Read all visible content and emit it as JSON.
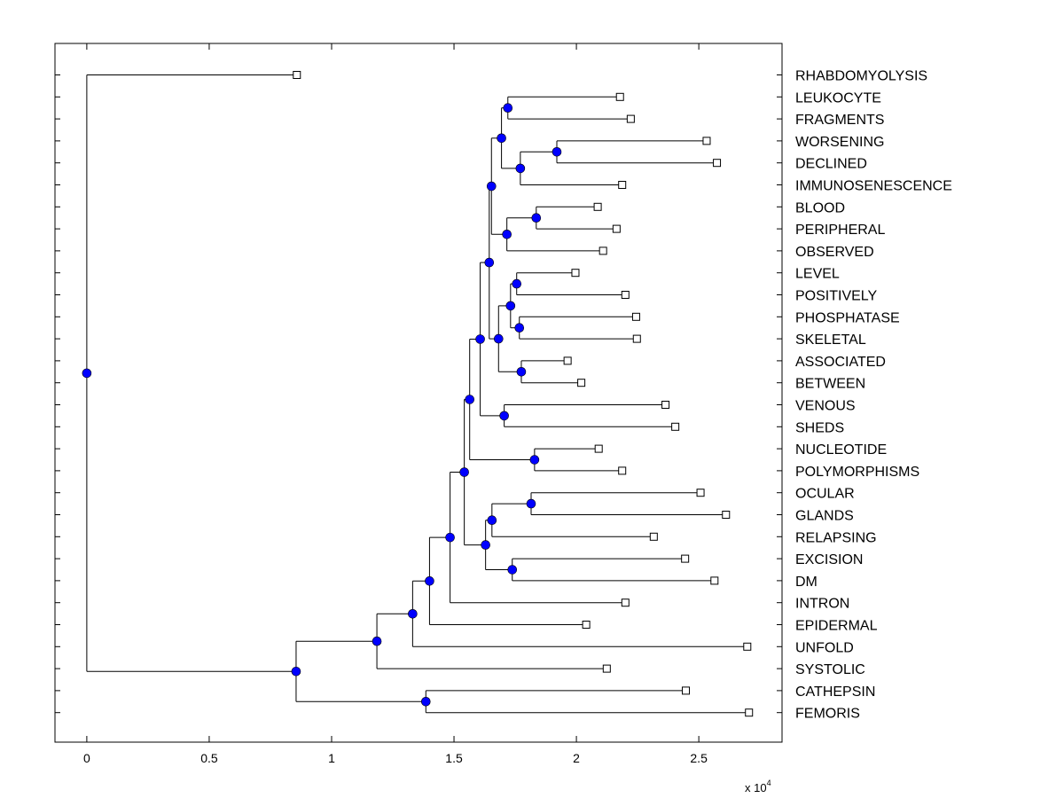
{
  "chart_data": {
    "type": "dendrogram",
    "orientation": "horizontal",
    "x_axis": {
      "range": [
        -0.13,
        2.84
      ],
      "ticks": [
        0,
        0.5,
        1,
        1.5,
        2,
        2.5
      ],
      "tick_labels": [
        "0",
        "0.5",
        "1",
        "1.5",
        "2",
        "2.5"
      ],
      "exponent_label": {
        "base": "x 10",
        "power": "4"
      }
    },
    "leaf_order": [
      "RHABDOMYOLYSIS",
      "LEUKOCYTE",
      "FRAGMENTS",
      "WORSENING",
      "DECLINED",
      "IMMUNOSENESCENCE",
      "BLOOD",
      "PERIPHERAL",
      "OBSERVED",
      "LEVEL",
      "POSITIVELY",
      "PHOSPHATASE",
      "SKELETAL",
      "ASSOCIATED",
      "BETWEEN",
      "VENOUS",
      "SHEDS",
      "NUCLEOTIDE",
      "POLYMORPHISMS",
      "OCULAR",
      "GLANDS",
      "RELAPSING",
      "EXCISION",
      "DM",
      "INTRON",
      "EPIDERMAL",
      "UNFOLD",
      "SYSTOLIC",
      "CATHEPSIN",
      "FEMORIS"
    ],
    "leaves": [
      {
        "id": "RHABDOMYOLYSIS",
        "value": 0.858
      },
      {
        "id": "LEUKOCYTE",
        "value": 2.178
      },
      {
        "id": "FRAGMENTS",
        "value": 2.222
      },
      {
        "id": "WORSENING",
        "value": 2.532
      },
      {
        "id": "DECLINED",
        "value": 2.574
      },
      {
        "id": "IMMUNOSENESCENCE",
        "value": 2.187
      },
      {
        "id": "BLOOD",
        "value": 2.087
      },
      {
        "id": "PERIPHERAL",
        "value": 2.164
      },
      {
        "id": "OBSERVED",
        "value": 2.109
      },
      {
        "id": "LEVEL",
        "value": 1.996
      },
      {
        "id": "POSITIVELY",
        "value": 2.2
      },
      {
        "id": "PHOSPHATASE",
        "value": 2.244
      },
      {
        "id": "SKELETAL",
        "value": 2.247
      },
      {
        "id": "ASSOCIATED",
        "value": 1.964
      },
      {
        "id": "BETWEEN",
        "value": 2.02
      },
      {
        "id": "VENOUS",
        "value": 2.364
      },
      {
        "id": "SHEDS",
        "value": 2.404
      },
      {
        "id": "NUCLEOTIDE",
        "value": 2.091
      },
      {
        "id": "POLYMORPHISMS",
        "value": 2.187
      },
      {
        "id": "OCULAR",
        "value": 2.507
      },
      {
        "id": "GLANDS",
        "value": 2.611
      },
      {
        "id": "RELAPSING",
        "value": 2.316
      },
      {
        "id": "EXCISION",
        "value": 2.444
      },
      {
        "id": "DM",
        "value": 2.564
      },
      {
        "id": "INTRON",
        "value": 2.2
      },
      {
        "id": "EPIDERMAL",
        "value": 2.04
      },
      {
        "id": "UNFOLD",
        "value": 2.698
      },
      {
        "id": "SYSTOLIC",
        "value": 2.124
      },
      {
        "id": "CATHEPSIN",
        "value": 2.447
      },
      {
        "id": "FEMORIS",
        "value": 2.705
      }
    ],
    "nodes": [
      {
        "id": "n1",
        "value": 1.72,
        "children": [
          "LEUKOCYTE",
          "FRAGMENTS"
        ]
      },
      {
        "id": "n2",
        "value": 1.92,
        "children": [
          "WORSENING",
          "DECLINED"
        ]
      },
      {
        "id": "n3",
        "value": 1.771,
        "children": [
          "n2",
          "IMMUNOSENESCENCE"
        ]
      },
      {
        "id": "n4",
        "value": 1.694,
        "children": [
          "n1",
          "n3"
        ]
      },
      {
        "id": "n5",
        "value": 1.836,
        "children": [
          "BLOOD",
          "PERIPHERAL"
        ]
      },
      {
        "id": "n6",
        "value": 1.716,
        "children": [
          "n5",
          "OBSERVED"
        ]
      },
      {
        "id": "n7",
        "value": 1.653,
        "children": [
          "n4",
          "n6"
        ]
      },
      {
        "id": "n8",
        "value": 1.756,
        "children": [
          "LEVEL",
          "POSITIVELY"
        ]
      },
      {
        "id": "n9",
        "value": 1.767,
        "children": [
          "PHOSPHATASE",
          "SKELETAL"
        ]
      },
      {
        "id": "n10",
        "value": 1.731,
        "children": [
          "n8",
          "n9"
        ]
      },
      {
        "id": "n11",
        "value": 1.775,
        "children": [
          "ASSOCIATED",
          "BETWEEN"
        ]
      },
      {
        "id": "n12",
        "value": 1.682,
        "children": [
          "n10",
          "n11"
        ]
      },
      {
        "id": "n13",
        "value": 1.644,
        "children": [
          "n7",
          "n12"
        ]
      },
      {
        "id": "n14",
        "value": 1.705,
        "children": [
          "VENOUS",
          "SHEDS"
        ]
      },
      {
        "id": "n15",
        "value": 1.607,
        "children": [
          "n13",
          "n14"
        ]
      },
      {
        "id": "n16",
        "value": 1.829,
        "children": [
          "NUCLEOTIDE",
          "POLYMORPHISMS"
        ]
      },
      {
        "id": "n17",
        "value": 1.564,
        "children": [
          "n15",
          "n16"
        ]
      },
      {
        "id": "n18",
        "value": 1.815,
        "children": [
          "OCULAR",
          "GLANDS"
        ]
      },
      {
        "id": "n19",
        "value": 1.655,
        "children": [
          "n18",
          "RELAPSING"
        ]
      },
      {
        "id": "n20",
        "value": 1.738,
        "children": [
          "EXCISION",
          "DM"
        ]
      },
      {
        "id": "n21",
        "value": 1.629,
        "children": [
          "n19",
          "n20"
        ]
      },
      {
        "id": "n22",
        "value": 1.542,
        "children": [
          "n17",
          "n21"
        ]
      },
      {
        "id": "n23",
        "value": 1.484,
        "children": [
          "n22",
          "INTRON"
        ]
      },
      {
        "id": "n24",
        "value": 1.4,
        "children": [
          "n23",
          "EPIDERMAL"
        ]
      },
      {
        "id": "n25",
        "value": 1.331,
        "children": [
          "n24",
          "UNFOLD"
        ]
      },
      {
        "id": "n26",
        "value": 1.185,
        "children": [
          "n25",
          "SYSTOLIC"
        ]
      },
      {
        "id": "n27",
        "value": 1.385,
        "children": [
          "CATHEPSIN",
          "FEMORIS"
        ]
      },
      {
        "id": "n28",
        "value": 0.855,
        "children": [
          "n26",
          "n27"
        ]
      },
      {
        "id": "root",
        "value": 0,
        "children": [
          "RHABDOMYOLYSIS",
          "n28"
        ]
      }
    ],
    "colors": {
      "node_fill": "#0000ff",
      "line": "#000000",
      "leaf_marker_fill": "#ffffff"
    }
  }
}
